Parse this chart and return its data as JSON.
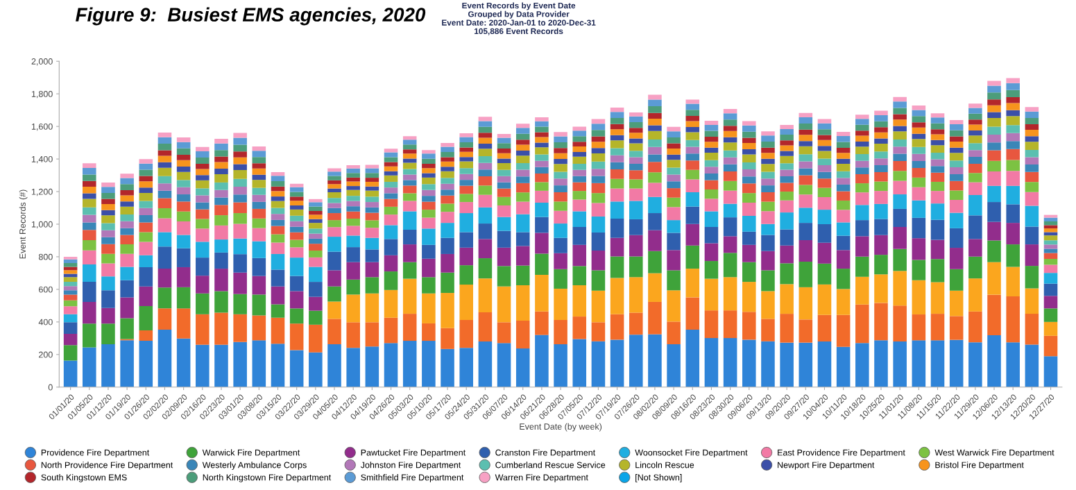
{
  "chart_data": {
    "type": "bar",
    "stacked": true,
    "title": "Figure 9:  Busiest EMS agencies, 2020",
    "subtitle": "Event Records by Event Date\nGrouped by Data Provider\nEvent Date: 2020-Jan-01 to 2020-Dec-31\n105,886 Event Records",
    "xlabel": "Event Date (by week)",
    "ylabel": "Event Records (#)",
    "ylim": [
      0,
      2000
    ],
    "yticks": [
      0,
      200,
      400,
      600,
      800,
      {
        "value": 1000,
        "label": "1,000"
      },
      {
        "value": 1200,
        "label": "1,200"
      },
      {
        "value": 1400,
        "label": "1,400"
      },
      {
        "value": 1600,
        "label": "1,600"
      },
      {
        "value": 1800,
        "label": "1,800"
      },
      {
        "value": 2000,
        "label": "2,000"
      }
    ],
    "legend": "bottom",
    "marker": "circle",
    "grid": false,
    "categories": [
      "01/01/20",
      "01/05/20",
      "01/12/20",
      "01/19/20",
      "01/26/20",
      "02/02/20",
      "02/09/20",
      "02/16/20",
      "02/23/20",
      "03/01/20",
      "03/08/20",
      "03/15/20",
      "03/22/20",
      "03/29/20",
      "04/05/20",
      "04/12/20",
      "04/19/20",
      "04/26/20",
      "05/03/20",
      "05/10/20",
      "05/17/20",
      "05/24/20",
      "05/31/20",
      "06/07/20",
      "06/14/20",
      "06/21/20",
      "06/28/20",
      "07/05/20",
      "07/12/20",
      "07/19/20",
      "07/26/20",
      "08/02/20",
      "08/09/20",
      "08/16/20",
      "08/23/20",
      "08/30/20",
      "09/06/20",
      "09/13/20",
      "09/20/20",
      "09/27/20",
      "10/04/20",
      "10/11/20",
      "10/18/20",
      "10/25/20",
      "11/01/20",
      "11/08/20",
      "11/15/20",
      "11/22/20",
      "11/29/20",
      "12/06/20",
      "12/13/20",
      "12/20/20",
      "12/27/20"
    ],
    "series": [
      {
        "name": "Providence Fire Department",
        "color": "#2f84d8",
        "values": [
          163,
          244,
          263,
          287,
          284,
          352,
          298,
          260,
          260,
          277,
          287,
          266,
          227,
          213,
          263,
          241,
          249,
          270,
          284,
          284,
          234,
          241,
          280,
          270,
          237,
          320,
          263,
          295,
          281,
          291,
          322,
          324,
          263,
          352,
          301,
          301,
          291,
          281,
          273,
          273,
          280,
          247,
          270,
          287,
          280,
          287,
          287,
          290,
          275,
          318,
          275,
          261,
          190
        ]
      },
      {
        "color": "#f26b2a",
        "values": [
          0,
          0,
          0,
          8,
          64,
          131,
          185,
          187,
          197,
          170,
          153,
          160,
          163,
          170,
          156,
          157,
          149,
          156,
          166,
          107,
          128,
          171,
          179,
          128,
          171,
          144,
          149,
          138,
          117,
          156,
          135,
          199,
          139,
          199,
          170,
          170,
          171,
          138,
          177,
          142,
          163,
          196,
          237,
          230,
          220,
          159,
          163,
          146,
          189,
          249,
          282,
          189,
          125
        ]
      },
      {
        "color": "#fba61e",
        "values": [
          0,
          0,
          0,
          0,
          0,
          0,
          0,
          0,
          0,
          0,
          0,
          0,
          0,
          0,
          106,
          170,
          177,
          170,
          215,
          184,
          216,
          217,
          208,
          220,
          217,
          225,
          192,
          192,
          194,
          223,
          218,
          176,
          192,
          176,
          194,
          204,
          184,
          170,
          182,
          198,
          187,
          159,
          170,
          175,
          213,
          210,
          194,
          156,
          203,
          200,
          181,
          156,
          85
        ]
      },
      {
        "name": "Warwick Fire Department",
        "color": "#3fa33a",
        "values": [
          95,
          146,
          127,
          128,
          149,
          128,
          130,
          128,
          132,
          124,
          128,
          82,
          93,
          86,
          93,
          92,
          100,
          114,
          102,
          100,
          125,
          119,
          124,
          125,
          121,
          130,
          120,
          118,
          125,
          132,
          127,
          136,
          123,
          142,
          109,
          149,
          121,
          128,
          128,
          157,
          128,
          125,
          124,
          120,
          135,
          125,
          142,
          132,
          134,
          133,
          138,
          138,
          83
        ]
      },
      {
        "name": "Pawtucket Fire Department",
        "color": "#922d8c",
        "values": [
          69,
          133,
          96,
          128,
          121,
          116,
          123,
          109,
          138,
          132,
          114,
          110,
          106,
          85,
          99,
          107,
          92,
          99,
          109,
          113,
          114,
          108,
          118,
          113,
          120,
          128,
          98,
          130,
          121,
          114,
          131,
          128,
          124,
          132,
          109,
          102,
          106,
          118,
          109,
          132,
          128,
          114,
          125,
          121,
          135,
          133,
          118,
          131,
          108,
          114,
          132,
          132,
          77
        ]
      },
      {
        "name": "Cranston Fire Department",
        "color": "#2f5fae",
        "values": [
          71,
          123,
          108,
          105,
          118,
          136,
          116,
          111,
          99,
          113,
          110,
          103,
          93,
          92,
          114,
          92,
          78,
          100,
          90,
          85,
          99,
          95,
          95,
          103,
          85,
          97,
          94,
          110,
          111,
          118,
          97,
          105,
          106,
          107,
          100,
          116,
          81,
          99,
          99,
          106,
          114,
          88,
          99,
          99,
          111,
          125,
          123,
          120,
          145,
          122,
          114,
          109,
          75
        ]
      },
      {
        "name": "Woonsocket Fire Department",
        "color": "#20aee0",
        "values": [
          49,
          107,
          85,
          82,
          73,
          88,
          82,
          97,
          80,
          96,
          103,
          96,
          113,
          92,
          92,
          71,
          71,
          85,
          113,
          100,
          92,
          117,
          99,
          85,
          110,
          88,
          88,
          96,
          98,
          105,
          113,
          99,
          78,
          88,
          96,
          83,
          97,
          67,
          104,
          93,
          89,
          82,
          93,
          92,
          89,
          107,
          100,
          95,
          125,
          99,
          113,
          128,
          66
        ]
      },
      {
        "name": "East Providence Fire Department",
        "color": "#f27aa5",
        "values": [
          49,
          86,
          80,
          80,
          82,
          85,
          83,
          81,
          86,
          90,
          81,
          70,
          63,
          58,
          59,
          60,
          62,
          65,
          64,
          67,
          68,
          68,
          77,
          71,
          77,
          73,
          78,
          72,
          83,
          80,
          76,
          87,
          80,
          79,
          77,
          81,
          81,
          79,
          74,
          81,
          77,
          77,
          77,
          80,
          83,
          81,
          77,
          79,
          78,
          89,
          92,
          84,
          50
        ]
      },
      {
        "name": "West Warwick Fire Department",
        "color": "#7cc242",
        "values": [
          36,
          63,
          59,
          58,
          60,
          62,
          61,
          59,
          63,
          66,
          59,
          51,
          46,
          42,
          43,
          44,
          46,
          48,
          47,
          49,
          50,
          50,
          57,
          52,
          57,
          53,
          57,
          53,
          61,
          59,
          56,
          64,
          58,
          58,
          57,
          59,
          59,
          58,
          54,
          59,
          57,
          57,
          56,
          58,
          61,
          59,
          56,
          58,
          57,
          65,
          67,
          62,
          36
        ]
      },
      {
        "name": "North Providence Fire Department",
        "color": "#e8573f",
        "values": [
          36,
          63,
          59,
          58,
          60,
          62,
          61,
          59,
          63,
          66,
          59,
          51,
          46,
          42,
          43,
          44,
          46,
          48,
          47,
          49,
          50,
          50,
          57,
          52,
          57,
          53,
          57,
          53,
          61,
          59,
          56,
          64,
          58,
          58,
          57,
          59,
          59,
          58,
          54,
          59,
          57,
          57,
          56,
          58,
          61,
          59,
          56,
          58,
          57,
          65,
          67,
          62,
          36
        ]
      },
      {
        "name": "Westerly Ambulance Corps",
        "color": "#3a86b8",
        "values": [
          26,
          46,
          43,
          42,
          44,
          45,
          44,
          43,
          46,
          48,
          43,
          37,
          34,
          31,
          31,
          32,
          33,
          35,
          34,
          36,
          36,
          36,
          41,
          38,
          41,
          39,
          42,
          38,
          44,
          43,
          40,
          46,
          42,
          42,
          41,
          43,
          43,
          42,
          40,
          43,
          41,
          41,
          41,
          42,
          44,
          43,
          41,
          42,
          42,
          48,
          49,
          45,
          26
        ]
      },
      {
        "name": "Johnston Fire Department",
        "color": "#b278b8",
        "values": [
          26,
          46,
          43,
          42,
          44,
          45,
          44,
          43,
          46,
          48,
          43,
          37,
          34,
          31,
          31,
          32,
          33,
          35,
          34,
          36,
          36,
          36,
          41,
          38,
          41,
          39,
          42,
          38,
          44,
          43,
          40,
          46,
          42,
          42,
          41,
          43,
          43,
          42,
          40,
          43,
          41,
          41,
          41,
          42,
          44,
          43,
          41,
          42,
          42,
          48,
          49,
          45,
          26
        ]
      },
      {
        "name": "Cumberland Rescue Service",
        "color": "#5bbfb0",
        "values": [
          26,
          46,
          43,
          42,
          44,
          45,
          44,
          43,
          46,
          48,
          43,
          37,
          34,
          31,
          31,
          32,
          33,
          35,
          34,
          36,
          36,
          36,
          41,
          38,
          41,
          39,
          42,
          38,
          44,
          43,
          40,
          46,
          42,
          42,
          41,
          43,
          43,
          42,
          40,
          43,
          41,
          41,
          41,
          42,
          44,
          43,
          41,
          42,
          42,
          48,
          49,
          45,
          26
        ]
      },
      {
        "name": "Lincoln Rescue",
        "color": "#b5b52a",
        "values": [
          29,
          52,
          48,
          48,
          49,
          51,
          50,
          49,
          51,
          54,
          49,
          42,
          38,
          35,
          35,
          36,
          37,
          39,
          38,
          40,
          41,
          41,
          46,
          42,
          46,
          44,
          47,
          43,
          50,
          48,
          45,
          52,
          48,
          47,
          46,
          49,
          49,
          47,
          45,
          49,
          46,
          46,
          46,
          48,
          50,
          49,
          46,
          47,
          47,
          54,
          55,
          50,
          30
        ]
      },
      {
        "name": "Newport Fire Department",
        "color": "#3b4fa8",
        "values": [
          20,
          35,
          32,
          32,
          33,
          34,
          33,
          32,
          34,
          36,
          32,
          28,
          25,
          23,
          23,
          24,
          25,
          26,
          26,
          27,
          27,
          27,
          31,
          28,
          31,
          29,
          31,
          29,
          33,
          32,
          30,
          35,
          32,
          32,
          31,
          32,
          32,
          32,
          30,
          32,
          31,
          31,
          31,
          32,
          33,
          32,
          31,
          32,
          31,
          36,
          37,
          34,
          20
        ]
      },
      {
        "name": "Bristol Fire Department",
        "color": "#f7941d",
        "values": [
          23,
          40,
          37,
          37,
          38,
          40,
          39,
          38,
          40,
          42,
          38,
          33,
          29,
          27,
          27,
          28,
          29,
          30,
          30,
          31,
          32,
          32,
          36,
          33,
          36,
          34,
          36,
          34,
          39,
          37,
          35,
          41,
          37,
          37,
          36,
          38,
          38,
          37,
          35,
          38,
          36,
          36,
          36,
          37,
          39,
          38,
          36,
          37,
          36,
          42,
          43,
          39,
          23
        ]
      },
      {
        "name": "South Kingstown EMS",
        "color": "#b3262b",
        "values": [
          20,
          35,
          32,
          32,
          33,
          34,
          33,
          32,
          34,
          36,
          32,
          28,
          25,
          23,
          23,
          24,
          25,
          26,
          26,
          27,
          27,
          27,
          31,
          28,
          31,
          29,
          31,
          29,
          33,
          32,
          30,
          35,
          32,
          32,
          31,
          32,
          32,
          32,
          30,
          32,
          31,
          31,
          31,
          32,
          33,
          32,
          31,
          32,
          31,
          36,
          37,
          34,
          20
        ]
      },
      {
        "name": "North Kingstown Fire Department",
        "color": "#4c9d7a",
        "values": [
          23,
          40,
          37,
          37,
          38,
          40,
          39,
          38,
          40,
          42,
          38,
          33,
          29,
          27,
          27,
          28,
          29,
          30,
          30,
          31,
          32,
          32,
          36,
          33,
          36,
          34,
          36,
          34,
          39,
          37,
          35,
          41,
          37,
          37,
          36,
          38,
          38,
          37,
          35,
          38,
          36,
          36,
          36,
          37,
          39,
          38,
          36,
          37,
          36,
          42,
          43,
          39,
          23
        ]
      },
      {
        "name": "Smithfield Fire Department",
        "color": "#5b9bd5",
        "values": [
          23,
          40,
          37,
          37,
          38,
          40,
          39,
          38,
          40,
          42,
          38,
          33,
          29,
          27,
          27,
          28,
          29,
          30,
          30,
          31,
          32,
          32,
          36,
          33,
          36,
          34,
          36,
          34,
          39,
          37,
          35,
          41,
          37,
          37,
          36,
          38,
          38,
          37,
          35,
          38,
          36,
          36,
          36,
          37,
          39,
          38,
          36,
          37,
          36,
          42,
          43,
          39,
          23
        ]
      },
      {
        "name": "Warren Fire Department",
        "color": "#f7a1c4",
        "values": [
          16,
          29,
          27,
          27,
          27,
          28,
          28,
          27,
          29,
          30,
          27,
          23,
          21,
          19,
          20,
          20,
          21,
          22,
          21,
          22,
          23,
          23,
          26,
          24,
          26,
          24,
          26,
          24,
          28,
          27,
          25,
          29,
          27,
          26,
          26,
          27,
          27,
          26,
          25,
          27,
          26,
          26,
          26,
          27,
          28,
          27,
          26,
          26,
          26,
          30,
          31,
          28,
          17
        ]
      },
      {
        "name": "[Not Shown]",
        "color": "#0aa5e8",
        "values": [
          0,
          0,
          0,
          0,
          0,
          0,
          0,
          0,
          0,
          0,
          0,
          0,
          0,
          0,
          0,
          0,
          0,
          0,
          0,
          0,
          0,
          0,
          0,
          0,
          0,
          0,
          0,
          0,
          0,
          0,
          0,
          0,
          0,
          0,
          0,
          0,
          0,
          0,
          0,
          0,
          0,
          0,
          0,
          0,
          0,
          0,
          0,
          0,
          0,
          0,
          0,
          0,
          0
        ]
      }
    ]
  }
}
